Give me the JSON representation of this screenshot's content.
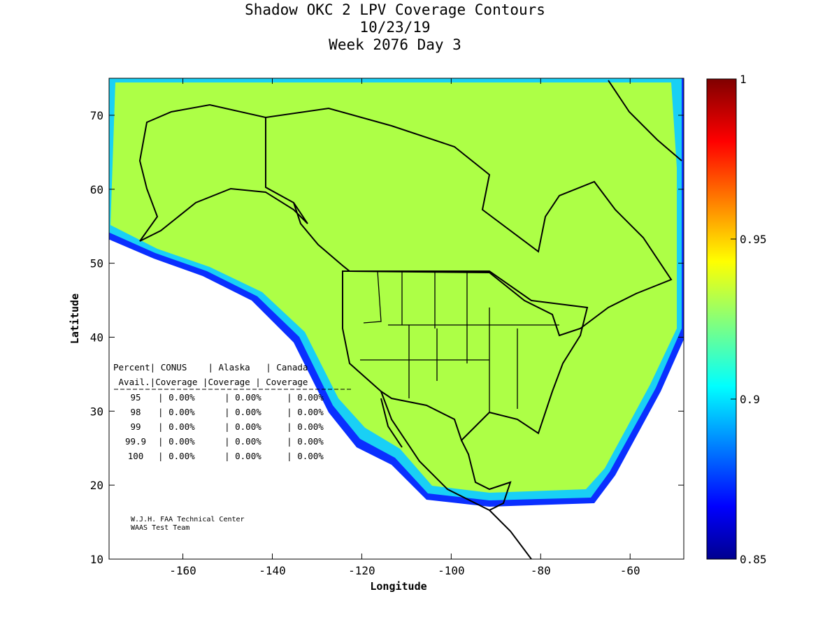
{
  "chart_data": {
    "type": "heatmap",
    "title": [
      "Shadow OKC 2 LPV Coverage Contours",
      "10/23/19",
      "Week 2076 Day 3"
    ],
    "xlabel": "Longitude",
    "ylabel": "Latitude",
    "xlim": [
      -176.5,
      -48
    ],
    "ylim": [
      10,
      75
    ],
    "xticks": [
      -160,
      -140,
      -120,
      -100,
      -80,
      -60
    ],
    "yticks": [
      10,
      20,
      30,
      40,
      50,
      60,
      70
    ],
    "colorbar": {
      "range": [
        0.85,
        1
      ],
      "ticks": [
        "0.85",
        "0.9",
        "0.95",
        "1"
      ],
      "colormap": "jet"
    },
    "dominant_value": 0.925,
    "table": {
      "header1": "Percent| CONUS    | Alaska   | Canada",
      "header2": " Avail.|Coverage |Coverage | Coverage",
      "rows": [
        {
          "avail": "95",
          "conus": "0.00%",
          "alaska": "0.00%",
          "canada": "0.00%"
        },
        {
          "avail": "98",
          "conus": "0.00%",
          "alaska": "0.00%",
          "canada": "0.00%"
        },
        {
          "avail": "99",
          "conus": "0.00%",
          "alaska": "0.00%",
          "canada": "0.00%"
        },
        {
          "avail": "99.9",
          "conus": "0.00%",
          "alaska": "0.00%",
          "canada": "0.00%"
        },
        {
          "avail": "100",
          "conus": "0.00%",
          "alaska": "0.00%",
          "canada": "0.00%"
        }
      ]
    },
    "credits": [
      "W.J.H. FAA Technical Center",
      "WAAS Test Team"
    ]
  }
}
